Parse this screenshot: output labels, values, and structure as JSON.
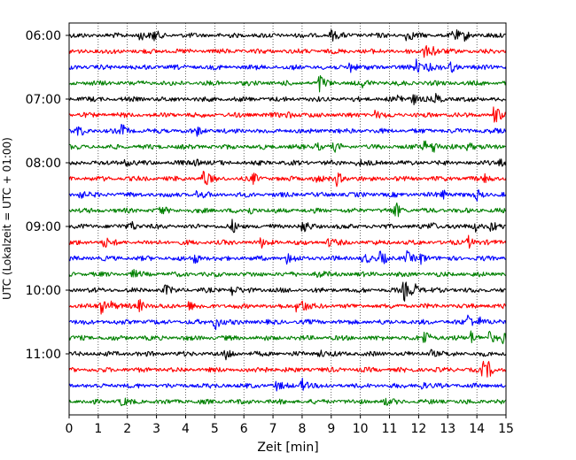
{
  "chart_data": {
    "type": "line",
    "title": "",
    "xlabel": "Zeit  [min]",
    "ylabel": "UTC (Lokalzeit = UTC + 01:00)",
    "xlim": [
      0,
      15
    ],
    "x_ticks": [
      0,
      1,
      2,
      3,
      4,
      5,
      6,
      7,
      8,
      9,
      10,
      11,
      12,
      13,
      14,
      15
    ],
    "x_tick_labels": [
      "0",
      "1",
      "2",
      "3",
      "4",
      "5",
      "6",
      "7",
      "8",
      "9",
      "10",
      "11",
      "12",
      "13",
      "14",
      "15"
    ],
    "y_tick_labels": [
      "06:00",
      "07:00",
      "08:00",
      "09:00",
      "10:00",
      "11:00"
    ],
    "y_tick_rows": [
      0,
      4,
      8,
      12,
      16,
      20
    ],
    "x_grid": "dotted vertical lines at each minute",
    "colors_cycle": [
      "#000000",
      "#ff0000",
      "#0000ff",
      "#008000"
    ],
    "rows": [
      {
        "start": "06:00",
        "color": "#000000",
        "events": [
          [
            2.4,
            0.5
          ],
          [
            2.9,
            0.45
          ],
          [
            9.0,
            0.45
          ],
          [
            11.6,
            0.5
          ],
          [
            13.2,
            0.55
          ],
          [
            13.6,
            0.4
          ]
        ]
      },
      {
        "start": "06:15",
        "color": "#ff0000",
        "events": [
          [
            12.2,
            0.55
          ],
          [
            12.5,
            0.35
          ]
        ]
      },
      {
        "start": "06:30",
        "color": "#0000ff",
        "events": [
          [
            9.6,
            0.65
          ],
          [
            11.9,
            0.6
          ],
          [
            12.3,
            0.4
          ],
          [
            13.1,
            0.4
          ]
        ]
      },
      {
        "start": "06:45",
        "color": "#008000",
        "events": [
          [
            8.6,
            0.7
          ],
          [
            10.1,
            0.3
          ]
        ]
      },
      {
        "start": "07:00",
        "color": "#000000",
        "events": [
          [
            11.3,
            0.45
          ],
          [
            11.8,
            0.5
          ],
          [
            12.6,
            0.35
          ]
        ]
      },
      {
        "start": "07:15",
        "color": "#ff0000",
        "events": [
          [
            7.5,
            0.3
          ],
          [
            14.6,
            0.8
          ],
          [
            10.5,
            0.3
          ]
        ]
      },
      {
        "start": "07:30",
        "color": "#0000ff",
        "events": [
          [
            0.3,
            0.45
          ],
          [
            1.8,
            0.5
          ],
          [
            4.4,
            0.3
          ]
        ]
      },
      {
        "start": "07:45",
        "color": "#008000",
        "events": [
          [
            8.5,
            0.35
          ],
          [
            9.1,
            0.3
          ],
          [
            12.2,
            0.5
          ],
          [
            12.5,
            0.55
          ],
          [
            13.7,
            0.45
          ]
        ]
      },
      {
        "start": "08:00",
        "color": "#000000",
        "events": [
          [
            1.9,
            0.4
          ],
          [
            4.3,
            0.35
          ],
          [
            9.9,
            0.3
          ],
          [
            14.8,
            0.3
          ]
        ]
      },
      {
        "start": "08:15",
        "color": "#ff0000",
        "events": [
          [
            4.6,
            0.9
          ],
          [
            6.3,
            0.4
          ],
          [
            8.4,
            0.35
          ],
          [
            9.2,
            0.6
          ],
          [
            14.3,
            0.4
          ]
        ]
      },
      {
        "start": "08:30",
        "color": "#0000ff",
        "events": [
          [
            0.3,
            0.5
          ],
          [
            4.4,
            0.35
          ],
          [
            12.8,
            0.4
          ],
          [
            14.0,
            0.4
          ]
        ]
      },
      {
        "start": "08:45",
        "color": "#008000",
        "events": [
          [
            3.1,
            0.35
          ],
          [
            6.2,
            0.3
          ],
          [
            11.2,
            0.7
          ]
        ]
      },
      {
        "start": "09:00",
        "color": "#000000",
        "events": [
          [
            2.1,
            0.55
          ],
          [
            5.6,
            0.45
          ],
          [
            8.0,
            0.6
          ],
          [
            12.4,
            0.45
          ],
          [
            13.9,
            0.5
          ],
          [
            14.5,
            0.4
          ]
        ]
      },
      {
        "start": "09:15",
        "color": "#ff0000",
        "events": [
          [
            1.2,
            0.45
          ],
          [
            6.6,
            0.35
          ],
          [
            8.9,
            0.35
          ],
          [
            13.7,
            0.55
          ]
        ]
      },
      {
        "start": "09:30",
        "color": "#0000ff",
        "events": [
          [
            4.3,
            0.45
          ],
          [
            7.5,
            0.5
          ],
          [
            10.1,
            0.45
          ],
          [
            10.7,
            0.75
          ],
          [
            11.6,
            0.45
          ],
          [
            12.1,
            0.5
          ]
        ]
      },
      {
        "start": "09:45",
        "color": "#008000",
        "events": [
          [
            2.2,
            0.25
          ],
          [
            8.5,
            0.3
          ]
        ]
      },
      {
        "start": "10:00",
        "color": "#000000",
        "events": [
          [
            3.3,
            0.35
          ],
          [
            5.6,
            0.45
          ],
          [
            11.5,
            0.85
          ],
          [
            11.8,
            0.7
          ]
        ]
      },
      {
        "start": "10:15",
        "color": "#ff0000",
        "events": [
          [
            1.1,
            0.6
          ],
          [
            1.4,
            0.45
          ],
          [
            2.4,
            0.55
          ],
          [
            4.1,
            0.4
          ],
          [
            7.8,
            0.4
          ],
          [
            8.0,
            0.45
          ]
        ]
      },
      {
        "start": "10:30",
        "color": "#0000ff",
        "events": [
          [
            5.0,
            0.75
          ],
          [
            13.7,
            0.7
          ],
          [
            14.1,
            0.35
          ]
        ]
      },
      {
        "start": "10:45",
        "color": "#008000",
        "events": [
          [
            12.2,
            0.75
          ],
          [
            13.8,
            0.55
          ],
          [
            14.4,
            0.45
          ],
          [
            14.9,
            0.4
          ]
        ]
      },
      {
        "start": "11:00",
        "color": "#000000",
        "events": [
          [
            5.4,
            0.55
          ],
          [
            8.6,
            0.35
          ],
          [
            12.4,
            0.35
          ]
        ]
      },
      {
        "start": "11:15",
        "color": "#ff0000",
        "events": [
          [
            6.5,
            0.55
          ],
          [
            14.2,
            0.6
          ],
          [
            14.4,
            0.5
          ]
        ]
      },
      {
        "start": "11:30",
        "color": "#0000ff",
        "events": [
          [
            7.1,
            0.35
          ],
          [
            8.0,
            0.6
          ],
          [
            12.0,
            0.5
          ]
        ]
      },
      {
        "start": "11:45",
        "color": "#008000",
        "events": [
          [
            1.8,
            0.3
          ],
          [
            10.8,
            0.3
          ]
        ]
      }
    ]
  }
}
